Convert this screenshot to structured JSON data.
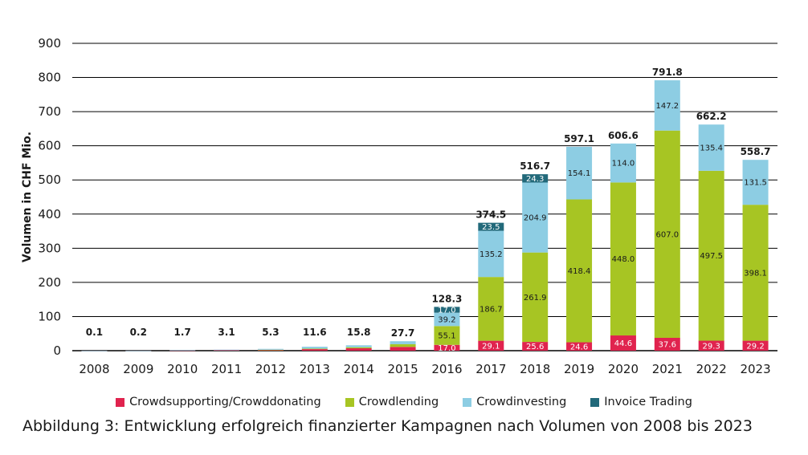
{
  "caption": "Abbildung 3: Entwicklung erfolgreich finanzierter Kampagnen nach Volumen von 2008 bis 2023",
  "chart_data": {
    "type": "bar",
    "stacked": true,
    "categories": [
      "2008",
      "2009",
      "2010",
      "2011",
      "2012",
      "2013",
      "2014",
      "2015",
      "2016",
      "2017",
      "2018",
      "2019",
      "2020",
      "2021",
      "2022",
      "2023"
    ],
    "ylabel": "Volumen in CHF Mio.",
    "xlabel": "",
    "ylim": [
      0,
      900
    ],
    "yticks": [
      0,
      100,
      200,
      300,
      400,
      500,
      600,
      700,
      800,
      900
    ],
    "grid": true,
    "legend_position": "bottom",
    "totals": [
      "0.1",
      "0.2",
      "1.7",
      "3.1",
      "5.3",
      "11.6",
      "15.8",
      "27.7",
      "128.3",
      "374.5",
      "516.7",
      "597.1",
      "606.6",
      "791.8",
      "662.2",
      "558.7"
    ],
    "series": [
      {
        "name": "Crowdsupporting/Crowddonating",
        "color": "#e0234e",
        "values": [
          0.05,
          0.1,
          0.8,
          1.4,
          2.2,
          4.5,
          7.0,
          11.0,
          17.0,
          29.1,
          25.6,
          24.6,
          44.6,
          37.6,
          29.3,
          29.2
        ],
        "labels": [
          null,
          null,
          null,
          null,
          null,
          null,
          null,
          null,
          "17.0",
          "29.1",
          "25.6",
          "24.6",
          "44.6",
          "37.6",
          "29.3",
          "29.2"
        ]
      },
      {
        "name": "Crowdlending",
        "color": "#a7c523",
        "values": [
          0,
          0,
          0,
          0,
          0.5,
          1.5,
          3.0,
          8.0,
          55.1,
          186.7,
          261.9,
          418.4,
          448.0,
          607.0,
          497.5,
          398.1
        ],
        "labels": [
          null,
          null,
          null,
          null,
          null,
          null,
          null,
          null,
          "55.1",
          "186.7",
          "261.9",
          "418.4",
          "448.0",
          "607.0",
          "497.5",
          "398.1"
        ]
      },
      {
        "name": "Crowdinvesting",
        "color": "#8dcde3",
        "values": [
          0.05,
          0.1,
          0.9,
          1.7,
          2.6,
          5.6,
          5.8,
          8.7,
          39.2,
          135.2,
          204.9,
          154.1,
          114.0,
          147.2,
          135.4,
          131.5
        ],
        "labels": [
          null,
          null,
          null,
          null,
          null,
          null,
          null,
          null,
          "39.2",
          "135.2",
          "204.9",
          "154.1",
          "114.0",
          "147.2",
          "135.4",
          "131.5"
        ]
      },
      {
        "name": "Invoice Trading",
        "color": "#22697a",
        "values": [
          0,
          0,
          0,
          0,
          0,
          0,
          0,
          0,
          17.0,
          23.5,
          24.3,
          0,
          0,
          0,
          0,
          0
        ],
        "labels": [
          null,
          null,
          null,
          null,
          null,
          null,
          null,
          null,
          "17.0",
          "23.5",
          "24.3",
          null,
          null,
          null,
          null,
          null
        ]
      }
    ]
  }
}
